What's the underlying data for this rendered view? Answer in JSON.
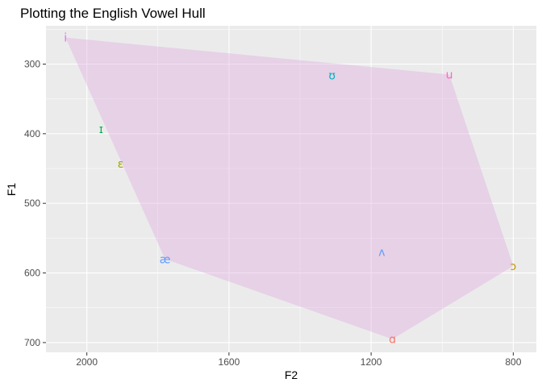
{
  "chart_data": {
    "type": "scatter",
    "title": "Plotting the English Vowel Hull",
    "xlabel": "F2",
    "ylabel": "F1",
    "x_axis": {
      "reversed": true,
      "range": [
        2115,
        735
      ],
      "ticks": [
        2000,
        1600,
        1200,
        800
      ]
    },
    "y_axis": {
      "reversed": true,
      "range": [
        245,
        714
      ],
      "ticks": [
        300,
        400,
        500,
        600,
        700
      ]
    },
    "grid": true,
    "hull": {
      "fill": "#dda0dd",
      "fill_opacity": 0.35,
      "polygon": [
        [
          2060,
          262
        ],
        [
          980,
          315
        ],
        [
          800,
          590
        ],
        [
          1140,
          695
        ],
        [
          1780,
          580
        ]
      ]
    },
    "points": [
      {
        "label": "i",
        "f2": 2060,
        "f1": 262,
        "color": "#e76bf3"
      },
      {
        "label": "ɪ",
        "f2": 1960,
        "f1": 393,
        "color": "#00b050"
      },
      {
        "label": "ɛ",
        "f2": 1905,
        "f1": 443,
        "color": "#a3a500"
      },
      {
        "label": "æ",
        "f2": 1780,
        "f1": 580,
        "color": "#619cff"
      },
      {
        "label": "ʊ",
        "f2": 1310,
        "f1": 316,
        "color": "#00b0c0"
      },
      {
        "label": "u",
        "f2": 980,
        "f1": 315,
        "color": "#ff62bc"
      },
      {
        "label": "ʌ",
        "f2": 1170,
        "f1": 570,
        "color": "#619cff"
      },
      {
        "label": "ɔ",
        "f2": 800,
        "f1": 590,
        "color": "#c49a00"
      },
      {
        "label": "ɑ",
        "f2": 1140,
        "f1": 695,
        "color": "#f8766d"
      }
    ]
  },
  "colors": {
    "panel_background": "#ebebeb",
    "grid_major": "#ffffff"
  }
}
